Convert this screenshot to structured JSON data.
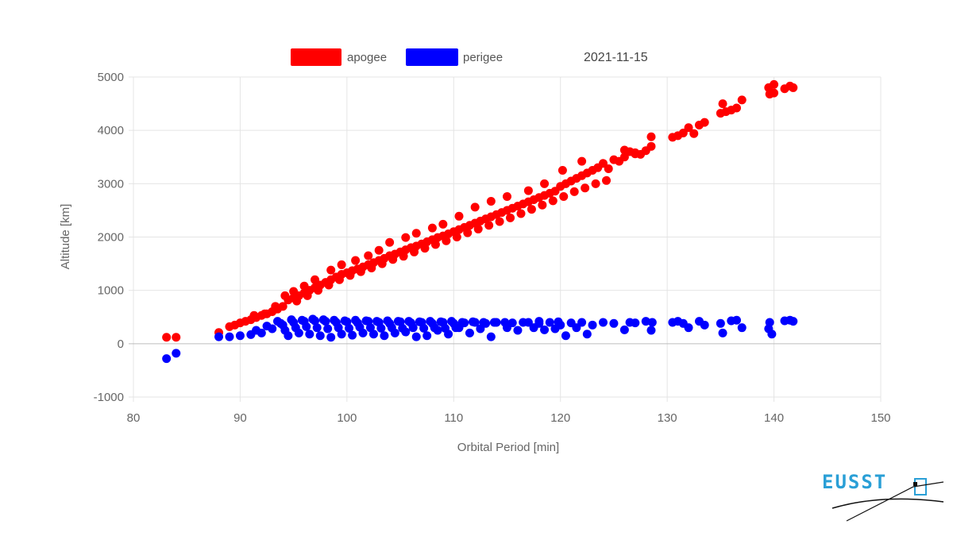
{
  "chart_data": {
    "type": "scatter",
    "title": "",
    "date_label": "2021-11-15",
    "xlabel": "Orbital Period [min]",
    "ylabel": "Altitude [km]",
    "xlim": [
      80,
      150
    ],
    "ylim": [
      -1000,
      5000
    ],
    "x_ticks": [
      80,
      90,
      100,
      110,
      120,
      130,
      140,
      150
    ],
    "y_ticks": [
      -1000,
      0,
      1000,
      2000,
      3000,
      4000,
      5000
    ],
    "grid": true,
    "legend_position": "top-center",
    "series": [
      {
        "name": "apogee",
        "color": "#ff0000",
        "points": [
          [
            83.1,
            120
          ],
          [
            84.0,
            120
          ],
          [
            88.0,
            210
          ],
          [
            89.0,
            320
          ],
          [
            89.5,
            350
          ],
          [
            90.0,
            390
          ],
          [
            90.5,
            420
          ],
          [
            91.0,
            450
          ],
          [
            91.5,
            490
          ],
          [
            92.0,
            530
          ],
          [
            92.5,
            560
          ],
          [
            93.0,
            600
          ],
          [
            93.5,
            650
          ],
          [
            94.0,
            700
          ],
          [
            94.5,
            820
          ],
          [
            95.0,
            860
          ],
          [
            95.5,
            900
          ],
          [
            96.0,
            950
          ],
          [
            96.5,
            1000
          ],
          [
            97.0,
            1050
          ],
          [
            97.5,
            1100
          ],
          [
            98.0,
            1150
          ],
          [
            98.5,
            1200
          ],
          [
            99.0,
            1250
          ],
          [
            99.5,
            1300
          ],
          [
            100.0,
            1330
          ],
          [
            100.5,
            1370
          ],
          [
            101.0,
            1400
          ],
          [
            101.5,
            1440
          ],
          [
            102.0,
            1480
          ],
          [
            102.5,
            1520
          ],
          [
            103.0,
            1560
          ],
          [
            103.5,
            1600
          ],
          [
            104.0,
            1650
          ],
          [
            104.5,
            1680
          ],
          [
            105.0,
            1720
          ],
          [
            105.5,
            1760
          ],
          [
            106.0,
            1800
          ],
          [
            106.5,
            1830
          ],
          [
            107.0,
            1870
          ],
          [
            107.5,
            1910
          ],
          [
            108.0,
            1950
          ],
          [
            108.5,
            1990
          ],
          [
            109.0,
            2020
          ],
          [
            109.5,
            2060
          ],
          [
            110.0,
            2100
          ],
          [
            110.5,
            2140
          ],
          [
            111.0,
            2180
          ],
          [
            111.5,
            2220
          ],
          [
            112.0,
            2260
          ],
          [
            112.5,
            2300
          ],
          [
            113.0,
            2340
          ],
          [
            113.5,
            2380
          ],
          [
            114.0,
            2420
          ],
          [
            114.5,
            2460
          ],
          [
            115.0,
            2500
          ],
          [
            115.5,
            2540
          ],
          [
            116.0,
            2580
          ],
          [
            116.5,
            2620
          ],
          [
            117.0,
            2660
          ],
          [
            117.5,
            2700
          ],
          [
            118.0,
            2740
          ],
          [
            118.5,
            2780
          ],
          [
            119.0,
            2820
          ],
          [
            119.5,
            2860
          ],
          [
            120.0,
            2950
          ],
          [
            120.5,
            3000
          ],
          [
            121.0,
            3050
          ],
          [
            121.5,
            3100
          ],
          [
            122.0,
            3150
          ],
          [
            122.5,
            3200
          ],
          [
            123.0,
            3250
          ],
          [
            123.5,
            3300
          ],
          [
            124.0,
            3380
          ],
          [
            125.0,
            3450
          ],
          [
            126.0,
            3500
          ],
          [
            127.0,
            3560
          ],
          [
            128.0,
            3620
          ],
          [
            128.5,
            3700
          ],
          [
            130.5,
            3870
          ],
          [
            131.0,
            3900
          ],
          [
            131.5,
            3950
          ],
          [
            132.0,
            4050
          ],
          [
            133.0,
            4100
          ],
          [
            133.5,
            4150
          ],
          [
            135.0,
            4320
          ],
          [
            135.5,
            4350
          ],
          [
            136.0,
            4380
          ],
          [
            136.5,
            4420
          ],
          [
            137.0,
            4570
          ],
          [
            139.5,
            4800
          ],
          [
            139.6,
            4680
          ],
          [
            140.0,
            4860
          ],
          [
            141.0,
            4780
          ],
          [
            141.5,
            4830
          ],
          [
            141.8,
            4800
          ],
          [
            140.0,
            4700
          ],
          [
            135.2,
            4500
          ],
          [
            128.5,
            3880
          ],
          [
            122.0,
            3420
          ],
          [
            120.2,
            3250
          ],
          [
            118.5,
            3000
          ],
          [
            117.0,
            2870
          ],
          [
            115.0,
            2760
          ],
          [
            113.5,
            2670
          ],
          [
            112.0,
            2560
          ],
          [
            110.5,
            2390
          ],
          [
            109.0,
            2240
          ],
          [
            108.0,
            2170
          ],
          [
            106.5,
            2070
          ],
          [
            105.5,
            1990
          ],
          [
            104.0,
            1900
          ],
          [
            103.0,
            1750
          ],
          [
            102.0,
            1650
          ],
          [
            100.8,
            1560
          ],
          [
            99.5,
            1480
          ],
          [
            98.5,
            1380
          ],
          [
            97.0,
            1200
          ],
          [
            96.0,
            1080
          ],
          [
            95.0,
            980
          ],
          [
            94.2,
            900
          ],
          [
            93.3,
            700
          ],
          [
            92.3,
            560
          ],
          [
            91.3,
            530
          ],
          [
            95.3,
            800
          ],
          [
            96.3,
            900
          ],
          [
            97.3,
            1000
          ],
          [
            98.3,
            1100
          ],
          [
            99.3,
            1200
          ],
          [
            100.3,
            1280
          ],
          [
            101.3,
            1350
          ],
          [
            102.3,
            1420
          ],
          [
            103.3,
            1500
          ],
          [
            104.3,
            1580
          ],
          [
            105.3,
            1640
          ],
          [
            106.3,
            1720
          ],
          [
            107.3,
            1790
          ],
          [
            108.3,
            1860
          ],
          [
            109.3,
            1930
          ],
          [
            110.3,
            2000
          ],
          [
            111.3,
            2080
          ],
          [
            112.3,
            2150
          ],
          [
            113.3,
            2220
          ],
          [
            114.3,
            2290
          ],
          [
            115.3,
            2360
          ],
          [
            116.3,
            2440
          ],
          [
            117.3,
            2520
          ],
          [
            118.3,
            2600
          ],
          [
            119.3,
            2680
          ],
          [
            120.3,
            2760
          ],
          [
            121.3,
            2850
          ],
          [
            122.3,
            2920
          ],
          [
            123.3,
            3000
          ],
          [
            124.3,
            3060
          ],
          [
            124.5,
            3280
          ],
          [
            126.5,
            3600
          ],
          [
            127.5,
            3550
          ],
          [
            126.0,
            3630
          ],
          [
            125.5,
            3420
          ],
          [
            127.0,
            3580
          ],
          [
            132.5,
            3940
          ]
        ]
      },
      {
        "name": "perigee",
        "color": "#0000ff",
        "points": [
          [
            83.1,
            -280
          ],
          [
            84.0,
            -180
          ],
          [
            88.0,
            130
          ],
          [
            89.0,
            130
          ],
          [
            90.0,
            150
          ],
          [
            91.0,
            170
          ],
          [
            92.0,
            200
          ],
          [
            93.0,
            280
          ],
          [
            94.0,
            350
          ],
          [
            94.5,
            150
          ],
          [
            95.0,
            400
          ],
          [
            95.5,
            200
          ],
          [
            96.0,
            420
          ],
          [
            96.5,
            180
          ],
          [
            97.0,
            430
          ],
          [
            97.5,
            150
          ],
          [
            98.0,
            420
          ],
          [
            98.5,
            120
          ],
          [
            99.0,
            400
          ],
          [
            99.5,
            180
          ],
          [
            100.0,
            410
          ],
          [
            100.5,
            160
          ],
          [
            101.0,
            390
          ],
          [
            101.5,
            200
          ],
          [
            102.0,
            420
          ],
          [
            102.5,
            180
          ],
          [
            103.0,
            400
          ],
          [
            103.5,
            150
          ],
          [
            104.0,
            380
          ],
          [
            104.5,
            200
          ],
          [
            105.0,
            410
          ],
          [
            105.5,
            220
          ],
          [
            106.0,
            390
          ],
          [
            106.5,
            130
          ],
          [
            107.0,
            400
          ],
          [
            107.5,
            150
          ],
          [
            108.0,
            380
          ],
          [
            108.5,
            250
          ],
          [
            109.0,
            400
          ],
          [
            109.5,
            180
          ],
          [
            110.0,
            380
          ],
          [
            110.5,
            300
          ],
          [
            111.0,
            390
          ],
          [
            111.5,
            200
          ],
          [
            112.0,
            400
          ],
          [
            112.5,
            280
          ],
          [
            113.0,
            380
          ],
          [
            113.5,
            130
          ],
          [
            114.0,
            400
          ],
          [
            115.0,
            300
          ],
          [
            115.5,
            390
          ],
          [
            116.0,
            250
          ],
          [
            117.0,
            400
          ],
          [
            117.5,
            300
          ],
          [
            118.0,
            380
          ],
          [
            118.5,
            260
          ],
          [
            119.0,
            400
          ],
          [
            119.5,
            280
          ],
          [
            120.0,
            350
          ],
          [
            120.5,
            150
          ],
          [
            121.0,
            390
          ],
          [
            121.5,
            300
          ],
          [
            122.0,
            400
          ],
          [
            122.5,
            180
          ],
          [
            123.0,
            350
          ],
          [
            124.0,
            400
          ],
          [
            125.0,
            380
          ],
          [
            126.0,
            260
          ],
          [
            126.5,
            400
          ],
          [
            127.0,
            390
          ],
          [
            128.0,
            420
          ],
          [
            128.5,
            250
          ],
          [
            128.6,
            400
          ],
          [
            130.5,
            400
          ],
          [
            131.0,
            420
          ],
          [
            131.5,
            380
          ],
          [
            132.0,
            300
          ],
          [
            133.0,
            420
          ],
          [
            133.5,
            350
          ],
          [
            135.0,
            380
          ],
          [
            135.2,
            200
          ],
          [
            136.0,
            430
          ],
          [
            136.5,
            440
          ],
          [
            137.0,
            300
          ],
          [
            139.5,
            280
          ],
          [
            139.6,
            400
          ],
          [
            139.8,
            180
          ],
          [
            141.0,
            430
          ],
          [
            141.5,
            440
          ],
          [
            141.8,
            420
          ],
          [
            93.5,
            420
          ],
          [
            94.8,
            450
          ],
          [
            95.8,
            440
          ],
          [
            96.8,
            460
          ],
          [
            97.8,
            450
          ],
          [
            98.8,
            440
          ],
          [
            99.8,
            430
          ],
          [
            100.8,
            440
          ],
          [
            101.8,
            430
          ],
          [
            102.8,
            420
          ],
          [
            103.8,
            430
          ],
          [
            104.8,
            420
          ],
          [
            105.8,
            420
          ],
          [
            106.8,
            410
          ],
          [
            107.8,
            420
          ],
          [
            108.8,
            410
          ],
          [
            109.8,
            420
          ],
          [
            110.8,
            400
          ],
          [
            111.8,
            410
          ],
          [
            112.8,
            400
          ],
          [
            113.8,
            400
          ],
          [
            114.8,
            400
          ],
          [
            116.5,
            400
          ],
          [
            118.0,
            420
          ],
          [
            119.8,
            410
          ],
          [
            95.2,
            300
          ],
          [
            96.2,
            320
          ],
          [
            97.2,
            300
          ],
          [
            98.2,
            280
          ],
          [
            99.2,
            300
          ],
          [
            100.2,
            290
          ],
          [
            101.2,
            310
          ],
          [
            102.2,
            300
          ],
          [
            103.2,
            290
          ],
          [
            104.2,
            300
          ],
          [
            105.2,
            290
          ],
          [
            106.2,
            300
          ],
          [
            107.2,
            290
          ],
          [
            108.2,
            300
          ],
          [
            109.2,
            290
          ],
          [
            110.2,
            300
          ],
          [
            91.5,
            250
          ],
          [
            92.5,
            330
          ],
          [
            93.8,
            380
          ],
          [
            94.2,
            250
          ]
        ]
      }
    ]
  },
  "logo": {
    "text": "EUSST"
  }
}
